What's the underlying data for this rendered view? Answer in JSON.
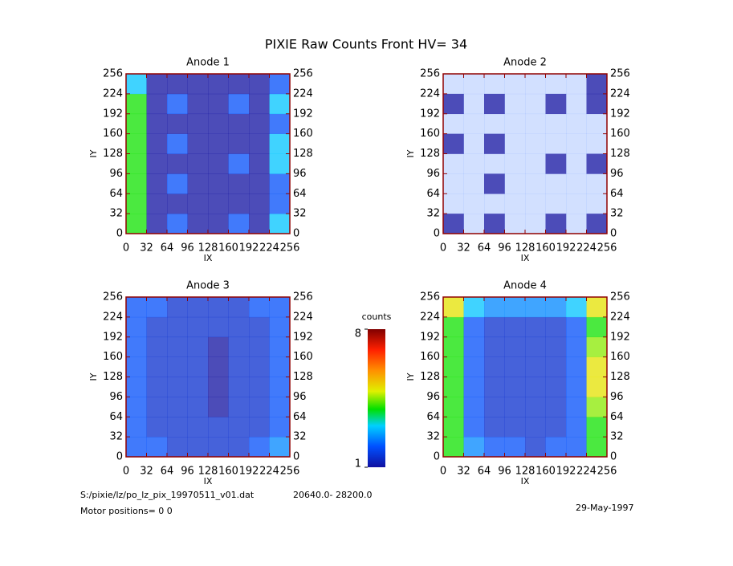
{
  "title": "PIXIE Raw Counts Front HV= 34",
  "chart_data": [
    {
      "type": "heatmap",
      "title": "Anode 1",
      "xlabel": "IX",
      "ylabel": "IY",
      "xlim": [
        0,
        256
      ],
      "ylim": [
        0,
        256
      ],
      "xticks": [
        0,
        32,
        64,
        96,
        128,
        160,
        192,
        224,
        256
      ],
      "yticks": [
        0,
        32,
        64,
        96,
        128,
        160,
        192,
        224,
        256
      ],
      "z": [
        [
          4,
          1,
          2,
          1,
          1,
          2,
          1,
          3
        ],
        [
          4,
          1,
          1,
          1,
          1,
          1,
          1,
          2
        ],
        [
          4,
          1,
          2,
          1,
          1,
          1,
          1,
          2
        ],
        [
          4,
          1,
          1,
          1,
          1,
          2,
          1,
          3
        ],
        [
          4,
          1,
          2,
          1,
          1,
          1,
          1,
          3
        ],
        [
          4,
          1,
          1,
          1,
          1,
          1,
          1,
          2
        ],
        [
          4,
          1,
          2,
          1,
          1,
          2,
          1,
          3
        ],
        [
          3,
          1,
          1,
          1,
          1,
          1,
          1,
          2
        ]
      ]
    },
    {
      "type": "heatmap",
      "title": "Anode 2",
      "xlabel": "IX",
      "ylabel": "IY",
      "xlim": [
        0,
        256
      ],
      "ylim": [
        0,
        256
      ],
      "xticks": [
        0,
        32,
        64,
        96,
        128,
        160,
        192,
        224,
        256
      ],
      "yticks": [
        0,
        32,
        64,
        96,
        128,
        160,
        192,
        224,
        256
      ],
      "z": [
        [
          1,
          0.5,
          1,
          0.5,
          0.5,
          1,
          0.5,
          1
        ],
        [
          0.5,
          0.5,
          0.5,
          0.5,
          0.5,
          0.5,
          0.5,
          0.5
        ],
        [
          0.5,
          0.5,
          1,
          0.5,
          0.5,
          0.5,
          0.5,
          0.5
        ],
        [
          0.5,
          0.5,
          0.5,
          0.5,
          0.5,
          1,
          0.5,
          1
        ],
        [
          1,
          0.5,
          1,
          0.5,
          0.5,
          0.5,
          0.5,
          0.5
        ],
        [
          0.5,
          0.5,
          0.5,
          0.5,
          0.5,
          0.5,
          0.5,
          0.5
        ],
        [
          1,
          0.5,
          1,
          0.5,
          0.5,
          1,
          0.5,
          1
        ],
        [
          0.5,
          0.5,
          0.5,
          0.5,
          0.5,
          0.5,
          0.5,
          1
        ]
      ]
    },
    {
      "type": "heatmap",
      "title": "Anode 3",
      "xlabel": "IX",
      "ylabel": "IY",
      "xlim": [
        0,
        256
      ],
      "ylim": [
        0,
        256
      ],
      "xticks": [
        0,
        32,
        64,
        96,
        128,
        160,
        192,
        224,
        256
      ],
      "yticks": [
        0,
        32,
        64,
        96,
        128,
        160,
        192,
        224,
        256
      ],
      "z": [
        [
          2,
          2,
          1.5,
          1.5,
          1.5,
          1.5,
          2,
          2.5
        ],
        [
          2,
          1.5,
          1.5,
          1.5,
          1.5,
          1.5,
          1.5,
          2
        ],
        [
          2,
          1.5,
          1.5,
          1.5,
          1,
          1.5,
          1.5,
          2
        ],
        [
          2,
          1.5,
          1.5,
          1.5,
          1,
          1.5,
          1.5,
          2
        ],
        [
          2,
          1.5,
          1.5,
          1.5,
          1,
          1.5,
          1.5,
          2
        ],
        [
          2,
          1.5,
          1.5,
          1.5,
          1,
          1.5,
          1.5,
          2
        ],
        [
          2,
          1.5,
          1.5,
          1.5,
          1.5,
          1.5,
          1.5,
          2
        ],
        [
          2,
          2,
          1.5,
          1.5,
          1.5,
          1.5,
          2,
          2
        ]
      ]
    },
    {
      "type": "heatmap",
      "title": "Anode 4",
      "xlabel": "IX",
      "ylabel": "IY",
      "xlim": [
        0,
        256
      ],
      "ylim": [
        0,
        256
      ],
      "xticks": [
        0,
        32,
        64,
        96,
        128,
        160,
        192,
        224,
        256
      ],
      "yticks": [
        0,
        32,
        64,
        96,
        128,
        160,
        192,
        224,
        256
      ],
      "z": [
        [
          4,
          2.5,
          2,
          2,
          1.5,
          2,
          2,
          4
        ],
        [
          4,
          2,
          1.5,
          1.5,
          1.5,
          1.5,
          2,
          4
        ],
        [
          4,
          2,
          1.5,
          1.5,
          1.5,
          1.5,
          2,
          4.5
        ],
        [
          4,
          2,
          1.5,
          1.5,
          1.5,
          1.5,
          2,
          5
        ],
        [
          4,
          2,
          1.5,
          1.5,
          1.5,
          1.5,
          2,
          5
        ],
        [
          4,
          2,
          1.5,
          1.5,
          1.5,
          1.5,
          2,
          4.5
        ],
        [
          4,
          2,
          1.5,
          1.5,
          1.5,
          1.5,
          2,
          4
        ],
        [
          5,
          3,
          2.5,
          2.5,
          2.5,
          2.5,
          3,
          5
        ]
      ]
    }
  ],
  "colorbar": {
    "label": "counts",
    "lim": [
      1,
      8
    ],
    "ticks": [
      1,
      8
    ]
  },
  "footer": {
    "file": "S:/pixie/lz/po_lz_pix_19970511_v01.dat",
    "range": "20640.0- 28200.0",
    "motor": "Motor positions= 0 0",
    "date": "29-May-1997"
  }
}
